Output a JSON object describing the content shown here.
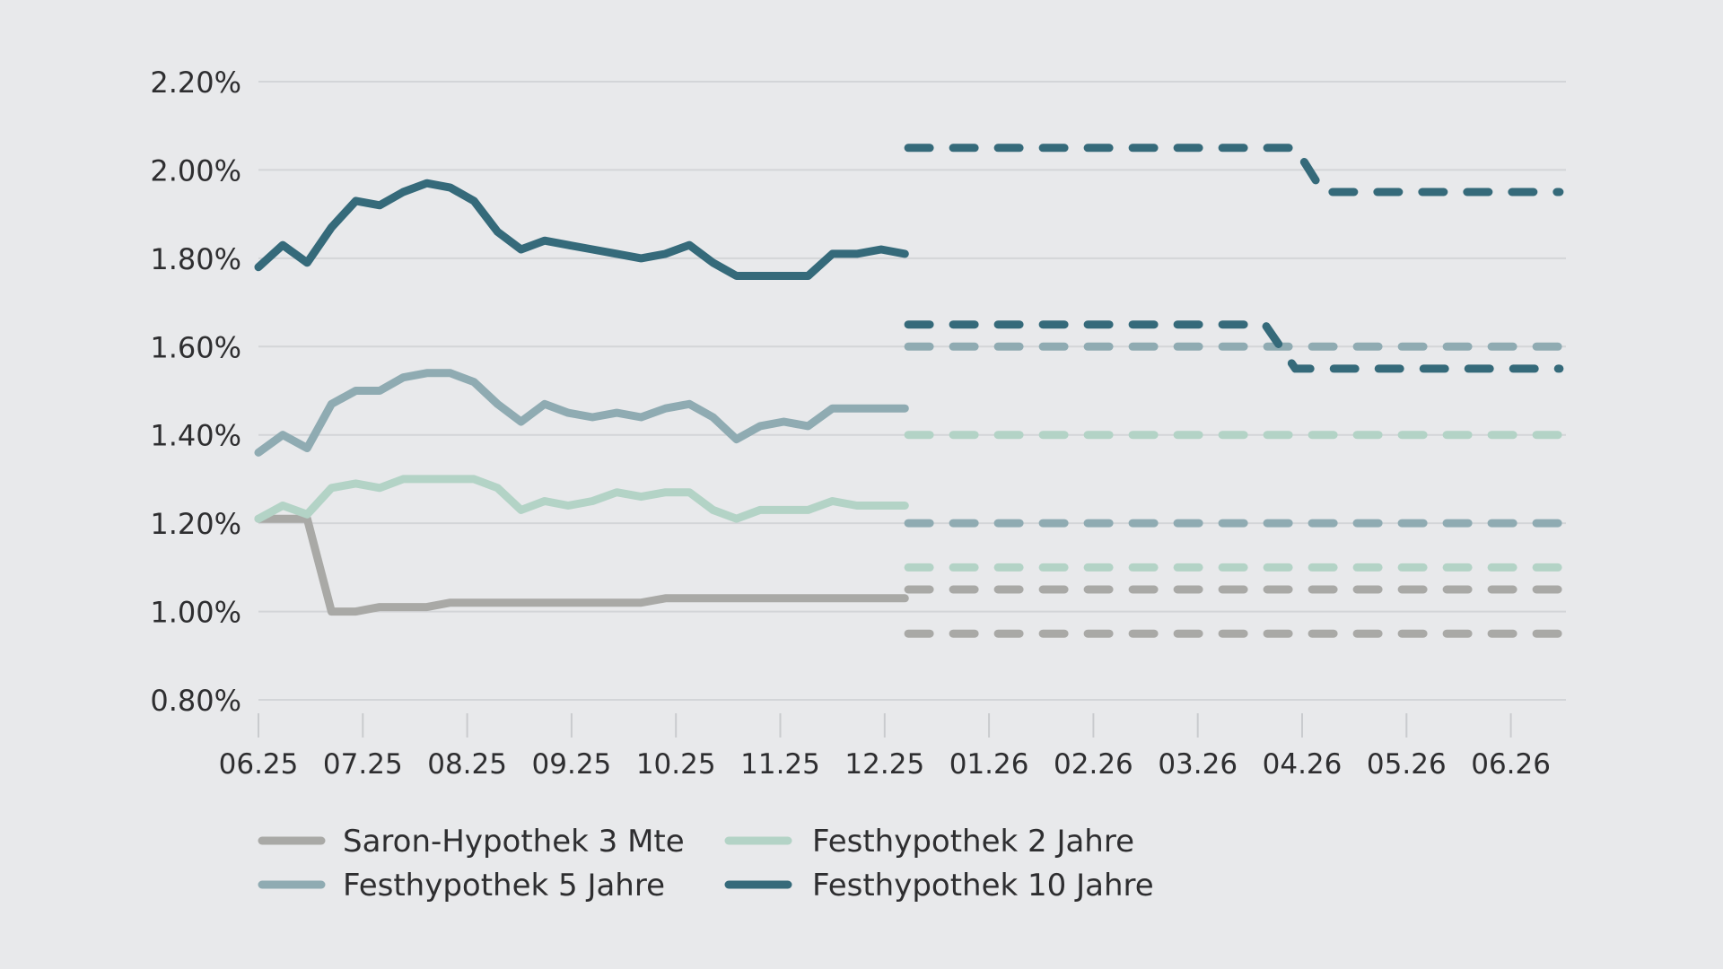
{
  "chart_data": {
    "type": "line",
    "title": "",
    "xlabel": "",
    "ylabel": "",
    "ylim": [
      0.8,
      2.2
    ],
    "y_ticks": [
      "0.80%",
      "1.00%",
      "1.20%",
      "1.40%",
      "1.60%",
      "1.80%",
      "2.00%",
      "2.20%"
    ],
    "y_tick_values": [
      0.8,
      1.0,
      1.2,
      1.4,
      1.6,
      1.8,
      2.0,
      2.2
    ],
    "x_ticks": [
      "06.25",
      "07.25",
      "08.25",
      "09.25",
      "10.25",
      "11.25",
      "12.25",
      "01.26",
      "02.26",
      "03.26",
      "04.26",
      "05.26",
      "06.26"
    ],
    "x_tick_dates": [
      "2025-06-01",
      "2025-07-01",
      "2025-08-01",
      "2025-09-01",
      "2025-10-01",
      "2025-11-01",
      "2025-12-01",
      "2026-01-01",
      "2026-02-01",
      "2026-03-01",
      "2026-04-01",
      "2026-05-01",
      "2026-06-01"
    ],
    "grid": true,
    "legend_placement": "bottom",
    "history_dates_weekly_from": "2025-06-01",
    "series": [
      {
        "name": "Saron-Hypothek 3 Mte",
        "color": "#a9a9a6",
        "values": [
          1.21,
          1.21,
          1.21,
          1.0,
          1.0,
          1.01,
          1.01,
          1.01,
          1.02,
          1.02,
          1.02,
          1.02,
          1.02,
          1.02,
          1.02,
          1.02,
          1.02,
          1.03,
          1.03,
          1.03,
          1.03,
          1.03,
          1.03,
          1.03,
          1.03,
          1.03,
          1.03,
          1.03
        ],
        "forecast": [
          {
            "dates": [
              "2025-12-08",
              "2026-06-15"
            ],
            "values": [
              1.05,
              1.05
            ]
          },
          {
            "dates": [
              "2025-12-08",
              "2026-06-15"
            ],
            "values": [
              0.95,
              0.95
            ]
          }
        ]
      },
      {
        "name": "Festhypothek 2 Jahre",
        "color": "#b3d3c6",
        "values": [
          1.21,
          1.24,
          1.22,
          1.28,
          1.29,
          1.28,
          1.3,
          1.3,
          1.3,
          1.3,
          1.28,
          1.23,
          1.25,
          1.24,
          1.25,
          1.27,
          1.26,
          1.27,
          1.27,
          1.23,
          1.21,
          1.23,
          1.23,
          1.23,
          1.25,
          1.24,
          1.24,
          1.24
        ],
        "forecast": [
          {
            "dates": [
              "2025-12-08",
              "2026-06-15"
            ],
            "values": [
              1.4,
              1.4
            ]
          },
          {
            "dates": [
              "2025-12-08",
              "2026-06-15"
            ],
            "values": [
              1.1,
              1.1
            ]
          }
        ]
      },
      {
        "name": "Festhypothek 5 Jahre",
        "color": "#8fabb2",
        "values": [
          1.36,
          1.4,
          1.37,
          1.47,
          1.5,
          1.5,
          1.53,
          1.54,
          1.54,
          1.52,
          1.47,
          1.43,
          1.47,
          1.45,
          1.44,
          1.45,
          1.44,
          1.46,
          1.47,
          1.44,
          1.39,
          1.42,
          1.43,
          1.42,
          1.46,
          1.46,
          1.46,
          1.46
        ],
        "forecast": [
          {
            "dates": [
              "2025-12-08",
              "2026-06-15"
            ],
            "values": [
              1.6,
              1.6
            ]
          },
          {
            "dates": [
              "2025-12-08",
              "2026-06-15"
            ],
            "values": [
              1.2,
              1.2
            ]
          }
        ]
      },
      {
        "name": "Festhypothek 10 Jahre",
        "color": "#356a7a",
        "values": [
          1.78,
          1.83,
          1.79,
          1.87,
          1.93,
          1.92,
          1.95,
          1.97,
          1.96,
          1.93,
          1.86,
          1.82,
          1.84,
          1.83,
          1.82,
          1.81,
          1.8,
          1.81,
          1.83,
          1.79,
          1.76,
          1.76,
          1.76,
          1.76,
          1.81,
          1.81,
          1.82,
          1.81
        ],
        "forecast": [
          {
            "dates": [
              "2025-12-08",
              "2026-03-30",
              "2026-04-07",
              "2026-06-15"
            ],
            "values": [
              2.05,
              2.05,
              1.95,
              1.95
            ]
          },
          {
            "dates": [
              "2025-12-08",
              "2026-03-21",
              "2026-03-30",
              "2026-06-15"
            ],
            "values": [
              1.65,
              1.65,
              1.55,
              1.55
            ]
          }
        ]
      }
    ]
  },
  "legend": [
    {
      "label": "Saron-Hypothek 3 Mte",
      "color": "#a9a9a6"
    },
    {
      "label": "Festhypothek 2 Jahre",
      "color": "#b3d3c6"
    },
    {
      "label": "Festhypothek 5 Jahre",
      "color": "#8fabb2"
    },
    {
      "label": "Festhypothek 10 Jahre",
      "color": "#356a7a"
    }
  ]
}
